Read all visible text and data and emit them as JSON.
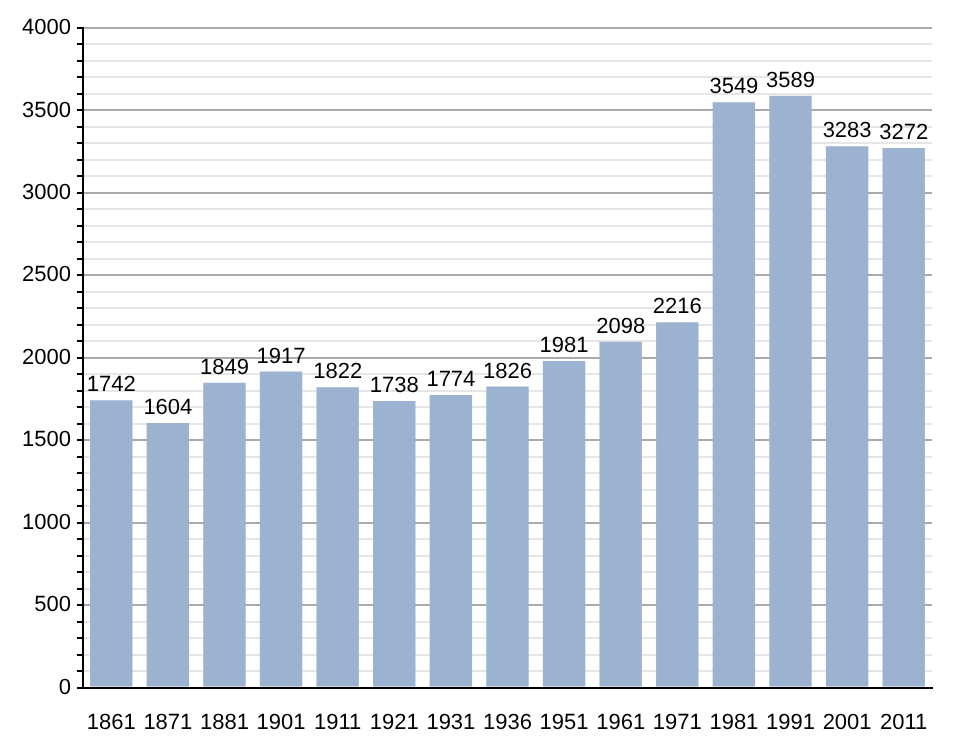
{
  "chart_data": {
    "type": "bar",
    "categories": [
      "1861",
      "1871",
      "1881",
      "1901",
      "1911",
      "1921",
      "1931",
      "1936",
      "1951",
      "1961",
      "1971",
      "1981",
      "1991",
      "2001",
      "2011"
    ],
    "values": [
      1742,
      1604,
      1849,
      1917,
      1822,
      1738,
      1774,
      1826,
      1981,
      2098,
      2216,
      3549,
      3589,
      3283,
      3272
    ],
    "color": "#9bb3d0",
    "data_labels": true,
    "grid": true,
    "ylim": [
      0,
      4000
    ],
    "yticks": [
      0,
      {
        "value": 100,
        "label": null
      },
      {
        "value": 200,
        "label": null
      },
      {
        "value": 300,
        "label": null
      },
      {
        "value": 400,
        "label": null
      },
      500,
      {
        "value": 600,
        "label": null
      },
      {
        "value": 700,
        "label": null
      },
      {
        "value": 800,
        "label": null
      },
      {
        "value": 900,
        "label": null
      },
      1000,
      {
        "value": 1100,
        "label": null
      },
      {
        "value": 1200,
        "label": null
      },
      {
        "value": 1300,
        "label": null
      },
      {
        "value": 1400,
        "label": null
      },
      1500,
      {
        "value": 1600,
        "label": null
      },
      {
        "value": 1700,
        "label": null
      },
      {
        "value": 1800,
        "label": null
      },
      {
        "value": 1900,
        "label": null
      },
      2000,
      {
        "value": 2100,
        "label": null
      },
      {
        "value": 2200,
        "label": null
      },
      {
        "value": 2300,
        "label": null
      },
      {
        "value": 2400,
        "label": null
      },
      2500,
      {
        "value": 2600,
        "label": null
      },
      {
        "value": 2700,
        "label": null
      },
      {
        "value": 2800,
        "label": null
      },
      {
        "value": 2900,
        "label": null
      },
      3000,
      {
        "value": 3100,
        "label": null
      },
      {
        "value": 3200,
        "label": null
      },
      {
        "value": 3300,
        "label": null
      },
      {
        "value": 3400,
        "label": null
      },
      3500,
      {
        "value": 3600,
        "label": null
      },
      {
        "value": 3700,
        "label": null
      },
      {
        "value": 3800,
        "label": null
      },
      {
        "value": 3900,
        "label": null
      },
      4000
    ]
  }
}
